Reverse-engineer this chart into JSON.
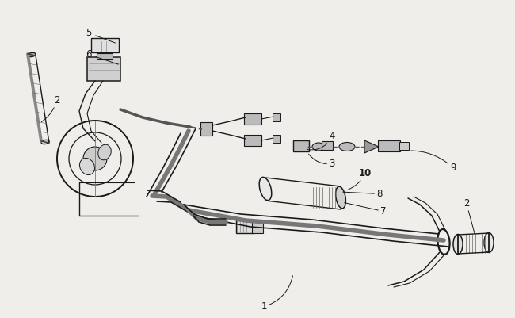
{
  "bg_color": "#f0eeea",
  "lc": "#1a1a1a",
  "fs": 8.5,
  "figw": 6.5,
  "figh": 4.01,
  "dpi": 100,
  "xlim": [
    0,
    650
  ],
  "ylim": [
    0,
    401
  ]
}
